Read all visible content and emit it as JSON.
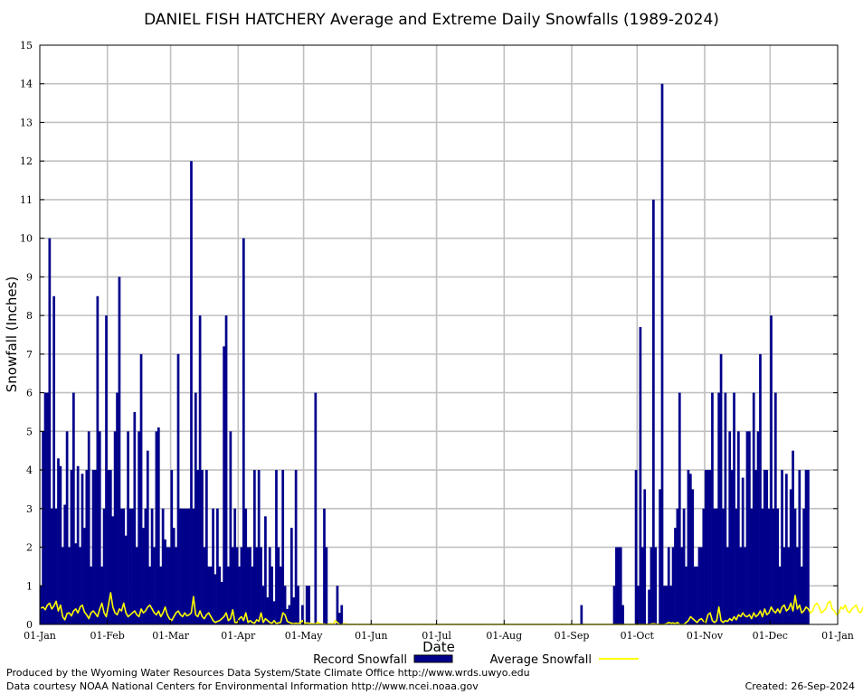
{
  "chart_data": {
    "type": "bar",
    "title": "DANIEL FISH HATCHERY Average and Extreme Daily Snowfalls (1989-2024)",
    "xlabel": "Date",
    "ylabel": "Snowfall (Inches)",
    "ylim": [
      0,
      15
    ],
    "y_ticks": [
      "0",
      "1",
      "2",
      "3",
      "4",
      "5",
      "6",
      "7",
      "8",
      "9",
      "10",
      "11",
      "12",
      "13",
      "14",
      "15"
    ],
    "x_ticks": [
      {
        "label": "01-Jan",
        "day": 0
      },
      {
        "label": "01-Feb",
        "day": 31
      },
      {
        "label": "01-Mar",
        "day": 60
      },
      {
        "label": "01-Apr",
        "day": 91
      },
      {
        "label": "01-May",
        "day": 121
      },
      {
        "label": "01-Jun",
        "day": 152
      },
      {
        "label": "01-Jul",
        "day": 182
      },
      {
        "label": "01-Aug",
        "day": 213
      },
      {
        "label": "01-Sep",
        "day": 244
      },
      {
        "label": "01-Oct",
        "day": 274
      },
      {
        "label": "01-Nov",
        "day": 305
      },
      {
        "label": "01-Dec",
        "day": 335
      },
      {
        "label": "01-Jan",
        "day": 366
      }
    ],
    "grid": true,
    "legend_position": "bottom",
    "series": [
      {
        "name": "Record Snowfall",
        "style": "bars",
        "color": "#00008b",
        "values": [
          1,
          5,
          6,
          6,
          10,
          3,
          8.5,
          3,
          4.3,
          4.1,
          2,
          3.1,
          5,
          2,
          4,
          6,
          2.1,
          4.1,
          2,
          3.9,
          2.5,
          4,
          5,
          1.5,
          4,
          4,
          8.5,
          5,
          1.5,
          3,
          8,
          4,
          4,
          2.8,
          5,
          6,
          9,
          3,
          3,
          2.3,
          5,
          3,
          3,
          5.5,
          2,
          5,
          7,
          2.5,
          3,
          4.5,
          1.5,
          3,
          2,
          5,
          5.1,
          1.5,
          3,
          2.2,
          2,
          2,
          4,
          2.5,
          2,
          7,
          3,
          3,
          3,
          3,
          3,
          12,
          3,
          6,
          4,
          8,
          4,
          2,
          4,
          1.5,
          1.5,
          3,
          1.3,
          3,
          1.5,
          1.1,
          7.2,
          8,
          1.5,
          5,
          2,
          3,
          2,
          1.5,
          2,
          10,
          3,
          2,
          2,
          1.5,
          4,
          2,
          4,
          2,
          1,
          2.8,
          0.7,
          2,
          1.5,
          0.6,
          4,
          2,
          1.5,
          4,
          1,
          0.4,
          0.5,
          2.5,
          0.7,
          4,
          1,
          0,
          0.5,
          0,
          1,
          1,
          0,
          0,
          6,
          0,
          0,
          0,
          3,
          2,
          0,
          0,
          0,
          0,
          1,
          0.3,
          0.5,
          0,
          0,
          0,
          0,
          0,
          0,
          0,
          0,
          0,
          0,
          0,
          0,
          0,
          0,
          0,
          0,
          0,
          0,
          0,
          0,
          0,
          0,
          0,
          0,
          0,
          0,
          0,
          0,
          0,
          0,
          0,
          0,
          0,
          0,
          0,
          0,
          0,
          0,
          0,
          0,
          0,
          0,
          0,
          0,
          0,
          0,
          0,
          0,
          0,
          0,
          0,
          0,
          0,
          0,
          0,
          0,
          0,
          0,
          0,
          0,
          0,
          0,
          0,
          0,
          0,
          0,
          0,
          0,
          0,
          0,
          0,
          0,
          0,
          0,
          0,
          0,
          0,
          0,
          0,
          0,
          0,
          0,
          0,
          0,
          0,
          0,
          0,
          0,
          0,
          0,
          0,
          0,
          0,
          0,
          0,
          0,
          0,
          0,
          0,
          0,
          0,
          0,
          0,
          0,
          0,
          0,
          0,
          0,
          0,
          0.5,
          0,
          0,
          0,
          0,
          0,
          0,
          0,
          0,
          0,
          0,
          0,
          0,
          0,
          0,
          1,
          2,
          2,
          2,
          0.5,
          0,
          0,
          0,
          0,
          0,
          4,
          1,
          7.7,
          2,
          3.5,
          0,
          0.9,
          2,
          11,
          2,
          0,
          3.5,
          14,
          1,
          1,
          2,
          1,
          2,
          2.5,
          3,
          6,
          2,
          3,
          1.5,
          4,
          3.9,
          3.5,
          1.5,
          1.5,
          2,
          2,
          3,
          4,
          4,
          4,
          6,
          3,
          3,
          6,
          7,
          3,
          6,
          2,
          5,
          4,
          6,
          3,
          5,
          2,
          3.8,
          2,
          5,
          5,
          3,
          6,
          4,
          5,
          7,
          3,
          4,
          4,
          3,
          8,
          3,
          6,
          3,
          1.5,
          4,
          2,
          3.9,
          2,
          3.5,
          4.5,
          3,
          2,
          4,
          1.5,
          3,
          4,
          4
        ]
      },
      {
        "name": "Average Snowfall",
        "style": "line",
        "color": "#ffff00",
        "values": [
          0.42,
          0.45,
          0.38,
          0.5,
          0.55,
          0.4,
          0.48,
          0.6,
          0.35,
          0.5,
          0.2,
          0.12,
          0.28,
          0.3,
          0.22,
          0.35,
          0.4,
          0.3,
          0.45,
          0.5,
          0.32,
          0.25,
          0.15,
          0.3,
          0.35,
          0.28,
          0.2,
          0.4,
          0.55,
          0.3,
          0.2,
          0.5,
          0.82,
          0.45,
          0.3,
          0.25,
          0.4,
          0.35,
          0.55,
          0.3,
          0.2,
          0.25,
          0.3,
          0.35,
          0.25,
          0.2,
          0.4,
          0.3,
          0.35,
          0.45,
          0.5,
          0.4,
          0.3,
          0.25,
          0.35,
          0.2,
          0.3,
          0.45,
          0.25,
          0.15,
          0.1,
          0.2,
          0.3,
          0.35,
          0.25,
          0.2,
          0.3,
          0.22,
          0.25,
          0.3,
          0.72,
          0.25,
          0.2,
          0.35,
          0.2,
          0.15,
          0.25,
          0.3,
          0.2,
          0.1,
          0.05,
          0.08,
          0.1,
          0.15,
          0.2,
          0.3,
          0.1,
          0.15,
          0.38,
          0.05,
          0.05,
          0.15,
          0.2,
          0.1,
          0.3,
          0.05,
          0.1,
          0.05,
          0.03,
          0.12,
          0.08,
          0.3,
          0.05,
          0.15,
          0.1,
          0.05,
          0.03,
          0.1,
          0.02,
          0.04,
          0.05,
          0.3,
          0.25,
          0.08,
          0.05,
          0.03,
          0.02,
          0.03,
          0.02,
          0.05,
          0.1,
          0.02,
          0.04,
          0.03,
          0.02,
          0.01,
          0.02,
          0.05,
          0.02,
          0.01,
          0.01,
          0,
          0.01,
          0.02,
          0,
          0.1,
          0.05,
          0,
          0,
          0.02,
          0.01,
          0,
          0,
          0,
          0,
          0,
          0,
          0,
          0,
          0,
          0,
          0,
          0,
          0,
          0,
          0,
          0,
          0,
          0,
          0,
          0,
          0,
          0,
          0,
          0,
          0,
          0,
          0,
          0,
          0,
          0,
          0,
          0,
          0,
          0,
          0,
          0,
          0,
          0,
          0,
          0,
          0,
          0,
          0,
          0,
          0,
          0,
          0,
          0,
          0,
          0,
          0,
          0,
          0,
          0,
          0,
          0,
          0,
          0,
          0,
          0,
          0,
          0,
          0,
          0,
          0,
          0,
          0,
          0,
          0,
          0,
          0,
          0,
          0,
          0,
          0,
          0,
          0,
          0,
          0,
          0,
          0,
          0,
          0,
          0,
          0,
          0,
          0,
          0,
          0,
          0,
          0,
          0,
          0,
          0,
          0,
          0,
          0,
          0,
          0,
          0,
          0,
          0,
          0,
          0,
          0,
          0,
          0,
          0,
          0,
          0,
          0,
          0,
          0,
          0,
          0,
          0,
          0,
          0,
          0,
          0,
          0,
          0,
          0,
          0,
          0,
          0,
          0,
          0,
          0,
          0,
          0,
          0,
          0,
          0,
          0,
          0,
          0,
          0,
          0,
          0.01,
          0.02,
          0.01,
          0,
          0,
          0,
          0,
          0.02,
          0.05,
          0.03,
          0.04,
          0.02,
          0.05,
          0,
          0,
          0,
          0.05,
          0.1,
          0.2,
          0.15,
          0.1,
          0.05,
          0.12,
          0.15,
          0.08,
          0.05,
          0.25,
          0.3,
          0.1,
          0.05,
          0.1,
          0.45,
          0.1,
          0.05,
          0.1,
          0.08,
          0.15,
          0.1,
          0.2,
          0.12,
          0.25,
          0.2,
          0.3,
          0.22,
          0.2,
          0.25,
          0.15,
          0.3,
          0.2,
          0.25,
          0.35,
          0.2,
          0.4,
          0.25,
          0.3,
          0.45,
          0.35,
          0.3,
          0.4,
          0.3,
          0.45,
          0.5,
          0.35,
          0.4,
          0.55,
          0.35,
          0.75,
          0.4,
          0.5,
          0.3,
          0.35,
          0.45,
          0.4,
          0.3,
          0.35,
          0.5,
          0.55,
          0.45,
          0.3,
          0.35,
          0.4,
          0.55,
          0.6,
          0.4,
          0.35,
          0.25,
          0.3,
          0.45,
          0.4,
          0.5,
          0.35,
          0.3,
          0.4,
          0.45,
          0.5,
          0.35,
          0.3,
          0.42,
          0.55
        ]
      }
    ]
  },
  "legend": {
    "record_label": "Record Snowfall",
    "average_label": "Average Snowfall"
  },
  "footer": {
    "produced_by": "Produced by the Wyoming Water Resources Data System/State Climate Office http://www.wrds.uwyo.edu",
    "courtesy": "Data courtesy NOAA National Centers for Environmental Information http://www.ncei.noaa.gov",
    "created": "Created:  26-Sep-2024"
  },
  "colors": {
    "bar": "#00008b",
    "average": "#ffff00",
    "grid": "#c0c0c0",
    "frame": "#000000"
  }
}
